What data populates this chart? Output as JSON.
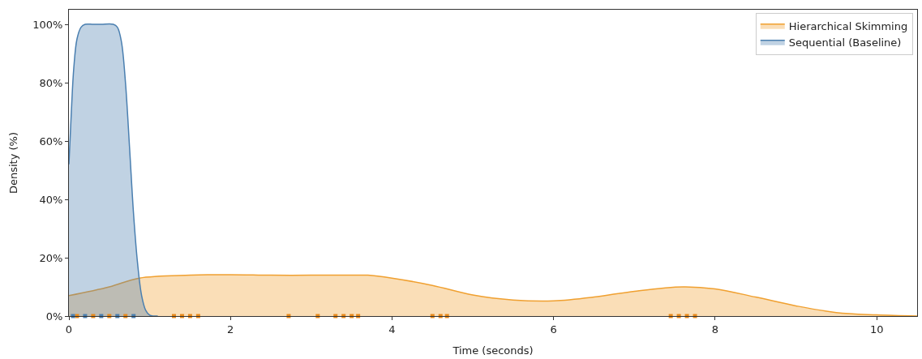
{
  "chart_data": {
    "type": "area",
    "xlabel": "Time (seconds)",
    "ylabel": "Density (%)",
    "xlim": [
      0,
      10.5
    ],
    "ylim": [
      0,
      105
    ],
    "xticks": [
      0,
      2,
      4,
      6,
      8,
      10
    ],
    "yticks": [
      {
        "value": 0,
        "label": "0%"
      },
      {
        "value": 20,
        "label": "20%"
      },
      {
        "value": 40,
        "label": "40%"
      },
      {
        "value": 60,
        "label": "60%"
      },
      {
        "value": 80,
        "label": "80%"
      },
      {
        "value": 100,
        "label": "100%"
      }
    ],
    "legend": "top right",
    "marker": "none",
    "series": [
      {
        "name": "Hierarchical Skimming",
        "color": "#f0a030",
        "x": [
          0,
          0.5,
          0.87,
          1.5,
          2,
          2.5,
          3,
          3.5,
          3.7,
          4,
          4.5,
          5,
          5.5,
          6,
          6.5,
          7,
          7.6,
          8,
          8.5,
          9,
          9.5,
          10,
          10.5
        ],
        "values": [
          7,
          10,
          13,
          14,
          14.2,
          14,
          14,
          14,
          14,
          13,
          10.5,
          7.2,
          5.5,
          5.2,
          6.5,
          8.5,
          10,
          9.3,
          6.5,
          3.5,
          1.2,
          0.4,
          0
        ]
      },
      {
        "name": "Sequential (Baseline)",
        "color": "#4a7fb0",
        "x": [
          0,
          0.03,
          0.06,
          0.1,
          0.15,
          0.2,
          0.3,
          0.4,
          0.55,
          0.6,
          0.65,
          0.7,
          0.75,
          0.8,
          0.85,
          0.9,
          0.95,
          1.0,
          1.05,
          1.1
        ],
        "values": [
          52,
          70,
          85,
          95,
          99,
          100,
          100,
          100,
          100,
          99,
          94,
          80,
          58,
          35,
          18,
          7,
          2,
          0.3,
          0,
          0
        ]
      },
      {
        "type": "scatter",
        "marker": "square",
        "color": "#e8891a",
        "x": [
          0.1,
          0.3,
          0.5,
          0.7,
          1.3,
          1.4,
          1.5,
          1.6,
          2.72,
          3.08,
          3.3,
          3.4,
          3.5,
          3.58,
          4.5,
          4.6,
          4.68,
          7.45,
          7.55,
          7.65,
          7.75
        ],
        "values": [
          0,
          0,
          0,
          0,
          0,
          0,
          0,
          0,
          0,
          0,
          0,
          0,
          0,
          0,
          0,
          0,
          0,
          0,
          0,
          0,
          0
        ]
      },
      {
        "type": "scatter",
        "marker": "square",
        "color": "#4a7fb0",
        "x": [
          0.05,
          0.2,
          0.4,
          0.6,
          0.8
        ],
        "values": [
          0,
          0,
          0,
          0,
          0
        ]
      }
    ]
  }
}
